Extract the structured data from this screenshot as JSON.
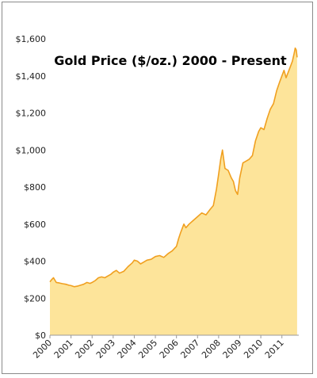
{
  "chart_data": {
    "type": "area",
    "title": "Gold Price ($/oz.) 2000 - Present",
    "xlabel": "",
    "ylabel": "",
    "xlim": [
      2000,
      2011.8
    ],
    "ylim": [
      0,
      1600
    ],
    "grid": false,
    "legend": "none",
    "y_ticks": [
      {
        "value": 0,
        "label": "$0"
      },
      {
        "value": 200,
        "label": "$200"
      },
      {
        "value": 400,
        "label": "$400"
      },
      {
        "value": 600,
        "label": "$600"
      },
      {
        "value": 800,
        "label": "$800"
      },
      {
        "value": 1000,
        "label": "$1,000"
      },
      {
        "value": 1200,
        "label": "$1,200"
      },
      {
        "value": 1400,
        "label": "$1,400"
      },
      {
        "value": 1600,
        "label": "$1,600"
      }
    ],
    "x_ticks": [
      {
        "value": 2000,
        "label": "2000"
      },
      {
        "value": 2001,
        "label": "2001"
      },
      {
        "value": 2002,
        "label": "2002"
      },
      {
        "value": 2003,
        "label": "2003"
      },
      {
        "value": 2004,
        "label": "2004"
      },
      {
        "value": 2005,
        "label": "2005"
      },
      {
        "value": 2006,
        "label": "2006"
      },
      {
        "value": 2007,
        "label": "2007"
      },
      {
        "value": 2008,
        "label": "2008"
      },
      {
        "value": 2009,
        "label": "2009"
      },
      {
        "value": 2010,
        "label": "2010"
      },
      {
        "value": 2011,
        "label": "2011"
      }
    ],
    "series": [
      {
        "color": "#f0a020",
        "fill": "#fde49a",
        "x": [
          2000.0,
          2000.08,
          2000.17,
          2000.3,
          2000.45,
          2000.6,
          2000.75,
          2000.9,
          2001.0,
          2001.15,
          2001.3,
          2001.45,
          2001.6,
          2001.75,
          2001.9,
          2002.0,
          2002.15,
          2002.3,
          2002.45,
          2002.6,
          2002.75,
          2002.9,
          2003.0,
          2003.15,
          2003.3,
          2003.5,
          2003.7,
          2003.9,
          2004.0,
          2004.15,
          2004.3,
          2004.45,
          2004.6,
          2004.8,
          2005.0,
          2005.2,
          2005.4,
          2005.6,
          2005.8,
          2006.0,
          2006.1,
          2006.2,
          2006.35,
          2006.45,
          2006.6,
          2006.8,
          2007.0,
          2007.2,
          2007.4,
          2007.6,
          2007.75,
          2007.9,
          2008.0,
          2008.1,
          2008.18,
          2008.3,
          2008.45,
          2008.6,
          2008.7,
          2008.8,
          2008.9,
          2009.0,
          2009.15,
          2009.3,
          2009.45,
          2009.6,
          2009.75,
          2009.9,
          2010.0,
          2010.15,
          2010.3,
          2010.45,
          2010.6,
          2010.75,
          2010.9,
          2011.0,
          2011.1,
          2011.2,
          2011.3,
          2011.4,
          2011.5,
          2011.58,
          2011.63,
          2011.68,
          2011.72
        ],
        "y": [
          288,
          300,
          310,
          285,
          282,
          278,
          275,
          270,
          268,
          262,
          265,
          270,
          275,
          285,
          280,
          285,
          295,
          310,
          315,
          310,
          320,
          330,
          340,
          350,
          335,
          345,
          370,
          390,
          405,
          400,
          385,
          395,
          405,
          410,
          425,
          430,
          420,
          440,
          455,
          480,
          520,
          555,
          600,
          580,
          600,
          620,
          640,
          660,
          650,
          680,
          700,
          790,
          870,
          950,
          1000,
          900,
          890,
          850,
          830,
          780,
          760,
          850,
          930,
          940,
          950,
          970,
          1050,
          1100,
          1120,
          1110,
          1170,
          1220,
          1250,
          1320,
          1370,
          1400,
          1430,
          1390,
          1420,
          1450,
          1480,
          1520,
          1550,
          1540,
          1500
        ]
      }
    ]
  }
}
